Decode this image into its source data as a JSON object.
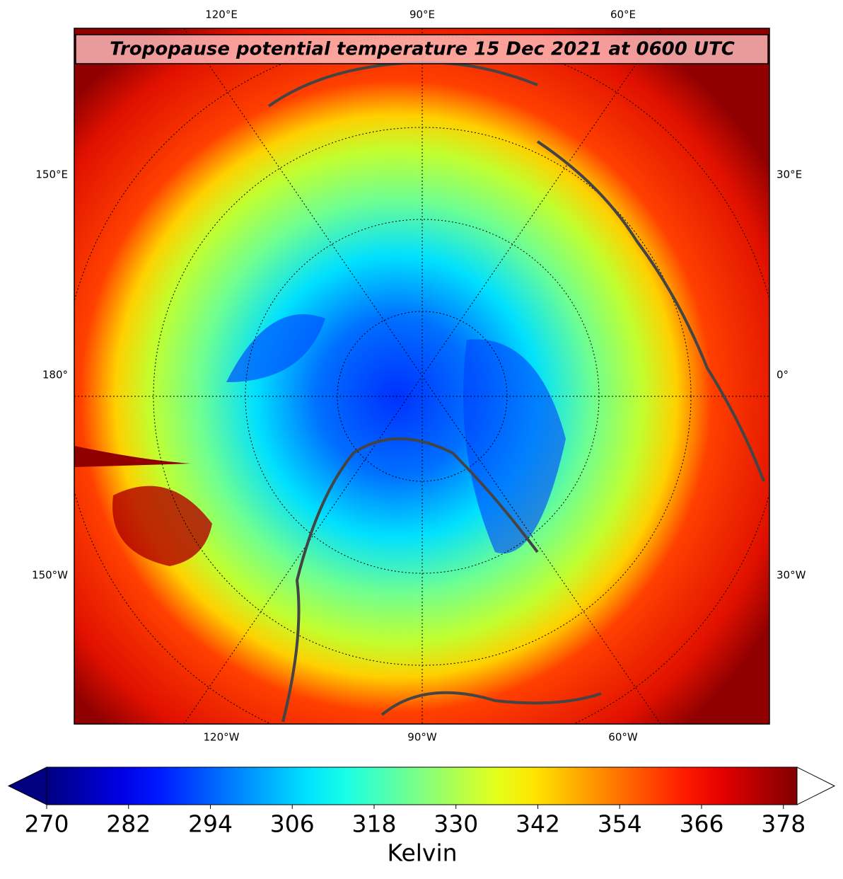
{
  "title": "Tropopause potential temperature 15 Dec 2021 at 0600 UTC",
  "map": {
    "top_labels": [
      "120°E",
      "90°E",
      "60°E"
    ],
    "bottom_labels": [
      "120°W",
      "90°W",
      "60°W"
    ],
    "left_labels": [
      "150°E",
      "180°",
      "150°W"
    ],
    "right_labels": [
      "30°E",
      "0°",
      "30°W"
    ]
  },
  "colorbar": {
    "label": "Kelvin",
    "colormap": "jet",
    "lim": [
      270,
      380
    ],
    "ticks": [
      270,
      282,
      294,
      306,
      318,
      330,
      342,
      354,
      366,
      378
    ]
  }
}
